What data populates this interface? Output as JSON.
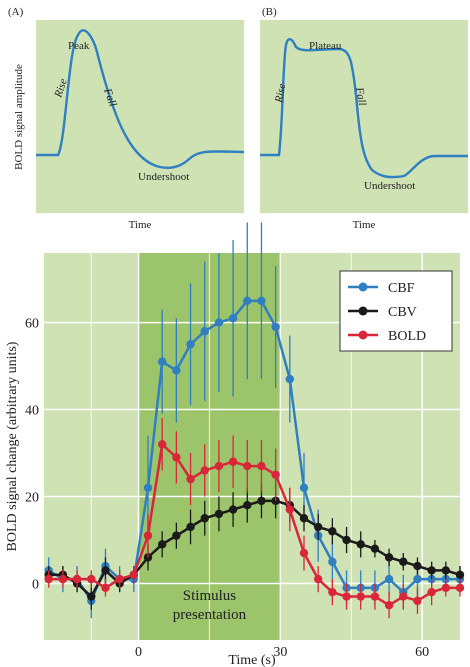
{
  "panels": {
    "a": {
      "letter": "(A)",
      "ylabel": "BOLD signal amplitude",
      "xlabel": "Time",
      "labels": {
        "rise": "Rise",
        "peak": "Peak",
        "fall": "Fall",
        "undershoot": "Undershoot"
      }
    },
    "b": {
      "letter": "(B)",
      "xlabel": "Time",
      "labels": {
        "rise": "Rise",
        "plateau": "Plateau",
        "fall": "Fall",
        "undershoot": "Undershoot"
      }
    }
  },
  "chart_data": {
    "type": "line",
    "title": "",
    "xlabel": "Time (s)",
    "ylabel": "BOLD signal change (arbitrary units)",
    "xlim": [
      -20,
      68
    ],
    "ylim": [
      -13,
      76
    ],
    "xticks": [
      0,
      30,
      60
    ],
    "yticks": [
      0,
      20,
      40,
      60
    ],
    "grid": true,
    "legend_position": "top-right",
    "stimulus": {
      "start": 0,
      "end": 30,
      "label_line1": "Stimulus",
      "label_line2": "presentation"
    },
    "x": [
      -19,
      -16,
      -13,
      -10,
      -7,
      -4,
      -1,
      2,
      5,
      8,
      11,
      14,
      17,
      20,
      23,
      26,
      29,
      32,
      35,
      38,
      41,
      44,
      47,
      50,
      53,
      56,
      59,
      62,
      65,
      68
    ],
    "series": [
      {
        "name": "CBF",
        "color": "#2f7fc1",
        "values": [
          3,
          1,
          1,
          -4,
          4,
          1,
          1,
          22,
          51,
          49,
          55,
          58,
          60,
          61,
          65,
          65,
          59,
          47,
          22,
          11,
          5,
          -1,
          -1,
          -1,
          1,
          -2,
          1,
          1,
          1,
          1
        ],
        "errors": [
          3,
          3,
          3,
          4,
          4,
          3,
          3,
          12,
          12,
          12,
          14,
          16,
          16,
          18,
          18,
          18,
          14,
          10,
          8,
          6,
          5,
          4,
          4,
          4,
          4,
          4,
          4,
          4,
          3,
          3
        ]
      },
      {
        "name": "CBV",
        "color": "#1a1a1a",
        "values": [
          2,
          2,
          0,
          -3,
          3,
          0,
          2,
          6,
          9,
          11,
          13,
          15,
          16,
          17,
          18,
          19,
          19,
          18,
          15,
          13,
          12,
          10,
          9,
          8,
          6,
          5,
          4,
          3,
          3,
          2
        ],
        "errors": [
          2,
          2,
          2,
          3,
          3,
          2,
          2,
          3,
          3,
          3,
          4,
          4,
          4,
          4,
          4,
          4,
          4,
          4,
          3,
          3,
          3,
          3,
          3,
          2,
          2,
          2,
          2,
          2,
          2,
          2
        ]
      },
      {
        "name": "BOLD",
        "color": "#d92638",
        "values": [
          1,
          1,
          1,
          1,
          -1,
          1,
          2,
          11,
          32,
          29,
          24,
          26,
          27,
          28,
          27,
          27,
          25,
          17,
          7,
          1,
          -2,
          -3,
          -3,
          -3,
          -5,
          -3,
          -4,
          -2,
          -1,
          -1
        ],
        "errors": [
          2,
          2,
          2,
          2,
          2,
          2,
          2,
          5,
          6,
          6,
          6,
          6,
          6,
          6,
          6,
          6,
          6,
          5,
          4,
          3,
          3,
          3,
          3,
          3,
          3,
          3,
          3,
          3,
          2,
          2
        ]
      }
    ]
  },
  "colors": {
    "panel_bg": "#cfe2b4",
    "stimulus_bg": "#9cc46a",
    "curve": "#2f7fc1",
    "grid": "#ffffff"
  }
}
